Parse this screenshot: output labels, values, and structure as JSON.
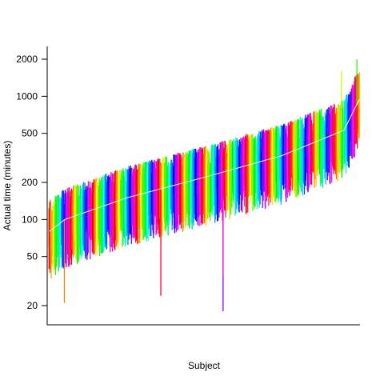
{
  "chart_data": {
    "type": "bar",
    "title": "",
    "xlabel": "Subject",
    "ylabel": "Actual time (minutes)",
    "y_scale": "log",
    "ylim": [
      17,
      2100
    ],
    "y_ticks": [
      20,
      50,
      100,
      200,
      500,
      1000,
      2000
    ],
    "y_tick_labels": [
      "20",
      "50",
      "100",
      "200",
      "500",
      "1000",
      "2000"
    ],
    "grid": false,
    "legend": "none",
    "subject_count": 300,
    "median_line_color": "#ffffff",
    "median_curve_approx": [
      {
        "rank_fraction": 0.0,
        "minutes": 80
      },
      {
        "rank_fraction": 0.05,
        "minutes": 100
      },
      {
        "rank_fraction": 0.25,
        "minutes": 150
      },
      {
        "rank_fraction": 0.5,
        "minutes": 220
      },
      {
        "rank_fraction": 0.75,
        "minutes": 330
      },
      {
        "rank_fraction": 0.95,
        "minutes": 530
      },
      {
        "rank_fraction": 1.0,
        "minutes": 950
      }
    ],
    "spread_low_factor": 0.4,
    "spread_high_factor": 1.8,
    "notable_outliers": [
      {
        "subject_fraction": 0.56,
        "minutes": 18
      },
      {
        "subject_fraction": 0.56,
        "minutes": 35
      },
      {
        "subject_fraction": 0.36,
        "minutes": 24
      },
      {
        "subject_fraction": 0.05,
        "minutes": 21
      },
      {
        "subject_fraction": 0.94,
        "minutes": 1600
      },
      {
        "subject_fraction": 0.99,
        "minutes": 2000
      }
    ]
  }
}
